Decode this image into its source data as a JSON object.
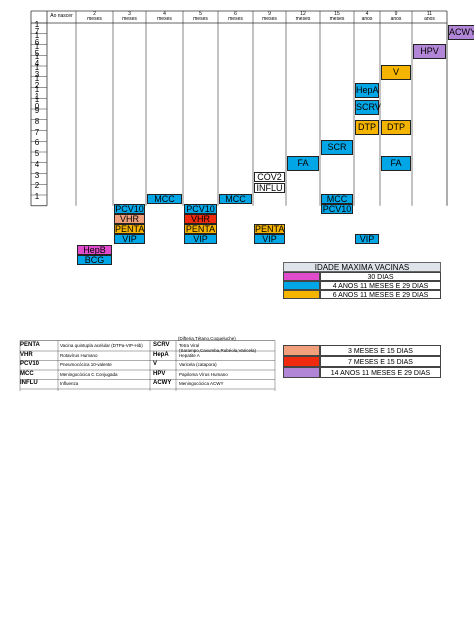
{
  "colors": {
    "blue": "#00a6e6",
    "orange": "#f5b400",
    "salmon": "#f2a07b",
    "red": "#f02a0e",
    "purple": "#b286d6",
    "magenta": "#e14ccd"
  },
  "header": {
    "col0": "Ao nascer",
    "cols": [
      {
        "num": "2",
        "unit": "meses"
      },
      {
        "num": "3",
        "unit": "meses"
      },
      {
        "num": "4",
        "unit": "meses"
      },
      {
        "num": "5",
        "unit": "meses"
      },
      {
        "num": "6",
        "unit": "meses"
      },
      {
        "num": "9",
        "unit": "meses"
      },
      {
        "num": "12",
        "unit": "meses"
      },
      {
        "num": "15",
        "unit": "meses"
      },
      {
        "num": "4",
        "unit": "anos"
      },
      {
        "num": "9",
        "unit": "anos"
      },
      {
        "num": "11",
        "unit": "anos"
      }
    ]
  },
  "row_labels": [
    "1\n7",
    "1\n6",
    "1\n5",
    "1\n4",
    "1\n3",
    "1\n2",
    "1\n1",
    "1\n0",
    "9",
    "8",
    "7",
    "6",
    "5",
    "4",
    "3",
    "2",
    "1"
  ],
  "cells": {
    "acwy": "ACWY",
    "hpv": "HPV",
    "v": "V",
    "hepa": "HepA",
    "scrv": "SCRV",
    "dtp15": "DTP",
    "dtp4": "DTP",
    "scr": "SCR",
    "fa9": "FA",
    "fa4": "FA",
    "cov2": "COV2",
    "influ": "INFLU",
    "mcc3": "MCC",
    "mcc5": "MCC",
    "mcc12": "MCC",
    "pcv2": "PCV10",
    "pcv4": "PCV10",
    "pcv12": "PCV10",
    "vhr2": "VHR",
    "vhr4": "VHR",
    "penta2": "PENTA",
    "penta4": "PENTA",
    "penta6": "PENTA",
    "vip2": "VIP",
    "vip4": "VIP",
    "vip6": "VIP",
    "vip15": "VIP",
    "hepb": "HepB",
    "bcg": "BCG"
  },
  "legend_max": {
    "title": "IDADE MAXIMA VACINAS",
    "items": [
      "30 DIAS",
      "4 ANOS 11 MESES E 29 DIAS",
      "6 ANOS 11 MESES E 29 DIAS"
    ]
  },
  "legend_max2": {
    "items": [
      "3 MESES E 15 DIAS",
      "7 MESES E 15 DIAS",
      "14 ANOS 11 MESES E 29 DIAS"
    ]
  },
  "abbreviations": {
    "top_note": "(Difteria,Tétano,Coqueluche)",
    "left": [
      {
        "code": "PENTA",
        "desc": "Vacina quintupla acelular (DTPa-VIP-Hib)"
      },
      {
        "code": "VHR",
        "desc": "Rotavírus Humano"
      },
      {
        "code": "PCV10",
        "desc": "Pneumocócica 10-valente"
      },
      {
        "code": "MCC",
        "desc": "Meningocócica C Conjugada"
      },
      {
        "code": "INFLU",
        "desc": "Influenza"
      }
    ],
    "right": [
      {
        "code": "SCRV",
        "desc": "Tetra Viral",
        "desc2": "(Sarampo,Caxumba,Rubéola,Varicela)"
      },
      {
        "code": "HepA",
        "desc": "Hepatite A"
      },
      {
        "code": "V",
        "desc": "Varicela (catapora)"
      },
      {
        "code": "HPV",
        "desc": "Papiloma Vírus Humano"
      },
      {
        "code": "ACWY",
        "desc": "Meningocócica ACWY"
      }
    ]
  }
}
